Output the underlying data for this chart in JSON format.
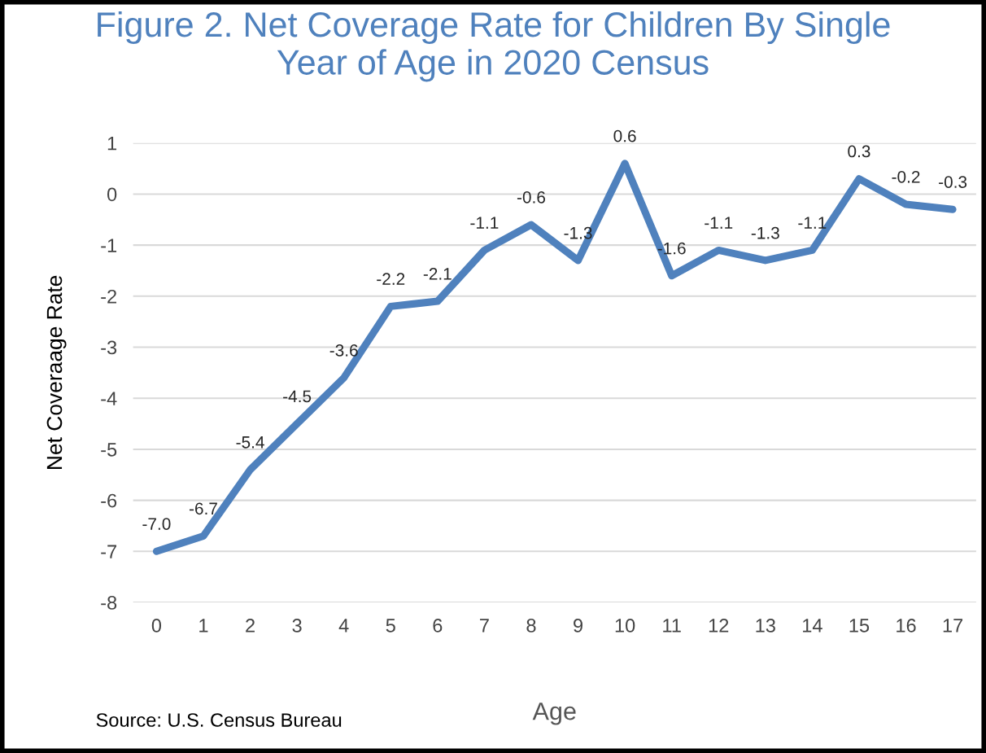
{
  "chart_data": {
    "type": "line",
    "title": "Figure 2. Net Coverage Rate for Children By Single\nYear of Age in 2020 Census",
    "xlabel": "Age",
    "ylabel": "Net Coveraage Rate",
    "categories": [
      "0",
      "1",
      "2",
      "3",
      "4",
      "5",
      "6",
      "7",
      "8",
      "9",
      "10",
      "11",
      "12",
      "13",
      "14",
      "15",
      "16",
      "17"
    ],
    "series": [
      {
        "color": "#4f81bd",
        "values": [
          -7.0,
          -6.7,
          -5.4,
          -4.5,
          -3.6,
          -2.2,
          -2.1,
          -1.1,
          -0.6,
          -1.3,
          0.6,
          -1.6,
          -1.1,
          -1.3,
          -1.1,
          0.3,
          -0.2,
          -0.3
        ],
        "value_labels": [
          "-7.0",
          "-6.7",
          "-5.4",
          "-4.5",
          "-3.6",
          "-2.2",
          "-2.1",
          "-1.1",
          "-0.6",
          "-1.3",
          "0.6",
          "-1.6",
          "-1.1",
          "-1.3",
          "-1.1",
          "0.3",
          "-0.2",
          "-0.3"
        ]
      }
    ],
    "ylim": [
      -8,
      1
    ],
    "yticks": [
      -8,
      -7,
      -6,
      -5,
      -4,
      -3,
      -2,
      -1,
      0,
      1
    ],
    "grid": "y",
    "marker": "none",
    "line_style": "solid",
    "legend": false,
    "annotations": [
      "Source: U.S. Census Bureau"
    ]
  }
}
